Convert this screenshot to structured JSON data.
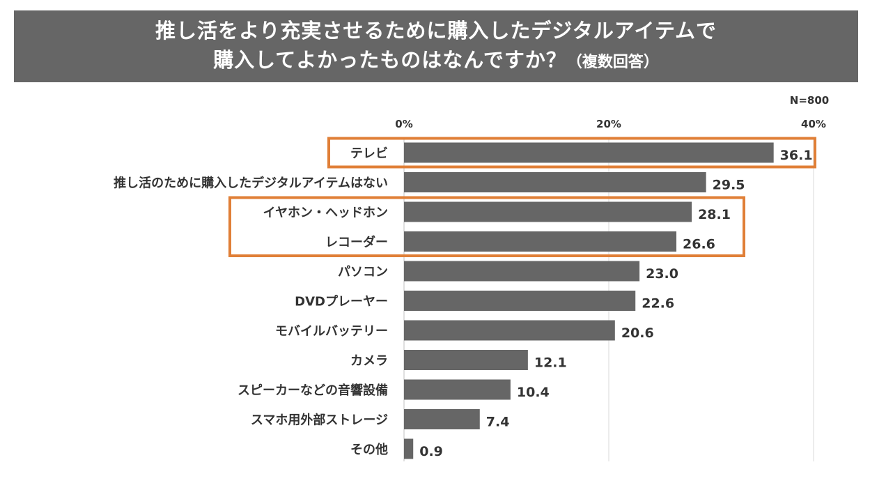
{
  "title": {
    "line1": "推し活をより充実させるために購入したデジタルアイテムで",
    "line2_main": "購入してよかったものはなんですか？",
    "line2_sub": "（複数回答）"
  },
  "sample_note": "N=800",
  "colors": {
    "banner": "#666666",
    "bar": "#666666",
    "highlight": "#E07F37",
    "text": "#333333"
  },
  "chart_data": {
    "type": "bar",
    "orientation": "horizontal",
    "categories": [
      "テレビ",
      "推し活のために購入したデジタルアイテムはない",
      "イヤホン・ヘッドホン",
      "レコーダー",
      "パソコン",
      "DVDプレーヤー",
      "モバイルバッテリー",
      "カメラ",
      "スピーカーなどの音響設備",
      "スマホ用外部ストレージ",
      "その他"
    ],
    "values": [
      36.1,
      29.5,
      28.1,
      26.6,
      23.0,
      22.6,
      20.6,
      12.1,
      10.4,
      7.4,
      0.9
    ],
    "value_labels": [
      "36.1",
      "29.5",
      "28.1",
      "26.6",
      "23.0",
      "22.6",
      "20.6",
      "12.1",
      "10.4",
      "7.4",
      "0.9"
    ],
    "xlim": [
      0,
      40
    ],
    "ticks": [
      0,
      20,
      40
    ],
    "tick_labels": [
      "0%",
      "20%",
      "40%"
    ],
    "highlight_groups": [
      [
        0
      ],
      [
        2,
        3
      ]
    ],
    "title": "推し活をより充実させるために購入したデジタルアイテムで購入してよかったものはなんですか？（複数回答）",
    "xlabel": "",
    "ylabel": ""
  }
}
